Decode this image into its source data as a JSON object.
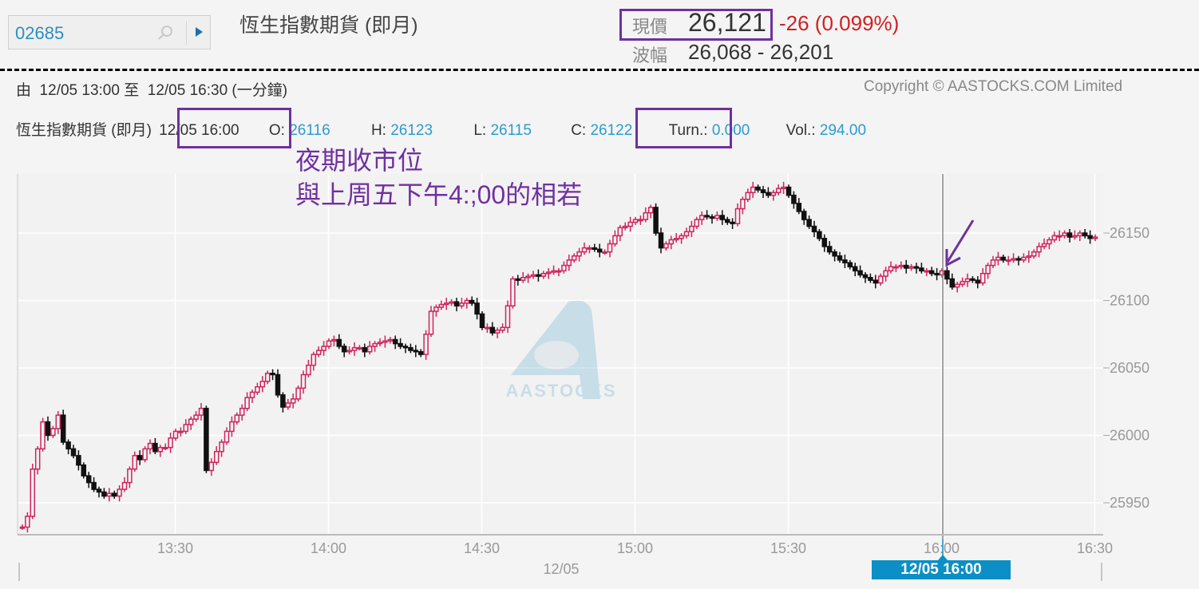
{
  "search": {
    "value": "02685",
    "icon": "search-icon",
    "go_icon": "play-icon"
  },
  "header": {
    "title": "恆生指數期貨 (即月)",
    "price_label": "現價",
    "price": "26,121",
    "change": "-26 (0.099%)",
    "range_label": "波幅",
    "range": "26,068 - 26,201"
  },
  "chart_header": {
    "period": "由  12/05 13:00 至  12/05 16:30 (一分鐘)",
    "copyright": "Copyright © AASTOCKS.COM Limited",
    "name": "恆生指數期貨 (即月)",
    "time": "12/05 16:00",
    "o_label": "O:",
    "o": "26116",
    "h_label": "H:",
    "h": "26123",
    "l_label": "L:",
    "l": "26115",
    "c_label": "C:",
    "c": "26122",
    "turn_label": "Turn.:",
    "turn": "0.000",
    "vol_label": "Vol.:",
    "vol": "294.00"
  },
  "annotation": {
    "line1": "夜期收市位",
    "line2": "與上周五下午4:;00的相若",
    "color": "#7030a0"
  },
  "watermark": "AASTOCKS",
  "colors": {
    "up": "#d0245c",
    "down": "#111111",
    "accent": "#0b8fc6",
    "change": "#d21f1f"
  },
  "chart_data": {
    "type": "candlestick",
    "interval": "1 minute",
    "start": "13:00",
    "x_ticks": [
      "13:30",
      "14:00",
      "14:30",
      "15:00",
      "15:30",
      "16:00",
      "16:30"
    ],
    "x_date": "12/05",
    "y_ticks": [
      25950,
      26000,
      26050,
      26100,
      26150
    ],
    "ylim": [
      25930,
      26195
    ],
    "cursor": "12/05 16:00",
    "grid": true,
    "close": [
      25932,
      25940,
      25975,
      25990,
      26010,
      26000,
      26005,
      26015,
      25995,
      25990,
      25985,
      25978,
      25970,
      25965,
      25960,
      25958,
      25955,
      25957,
      25955,
      25960,
      25965,
      25975,
      25985,
      25982,
      25990,
      25994,
      25988,
      25991,
      25991,
      25998,
      26003,
      26003,
      26008,
      26012,
      26015,
      26020,
      25974,
      25980,
      25988,
      25995,
      26003,
      26010,
      26015,
      26020,
      26028,
      26032,
      26036,
      26040,
      26046,
      26045,
      26030,
      26021,
      26024,
      26027,
      26035,
      26045,
      26052,
      26060,
      26063,
      26066,
      26070,
      26071,
      26066,
      26062,
      26063,
      26065,
      26065,
      26062,
      26066,
      26068,
      26069,
      26070,
      26071,
      26068,
      26066,
      26065,
      26063,
      26062,
      26060,
      26075,
      26092,
      26095,
      26097,
      26098,
      26099,
      26096,
      26098,
      26100,
      26098,
      26090,
      26080,
      26080,
      26076,
      26078,
      26080,
      26096,
      26116,
      26115,
      26117,
      26118,
      26119,
      26118,
      26120,
      26121,
      26122,
      26122,
      26126,
      26130,
      26133,
      26136,
      26139,
      26139,
      26138,
      26136,
      26136,
      26142,
      26148,
      26154,
      26155,
      26158,
      26160,
      26160,
      26165,
      26169,
      26150,
      26139,
      26142,
      26145,
      26146,
      26148,
      26151,
      26155,
      26160,
      26163,
      26162,
      26161,
      26163,
      26160,
      26158,
      26157,
      26168,
      26175,
      26180,
      26184,
      26182,
      26180,
      26178,
      26180,
      26183,
      26184,
      26178,
      26172,
      26166,
      26160,
      26155,
      26151,
      26146,
      26140,
      26136,
      26133,
      26130,
      26128,
      26125,
      26122,
      26119,
      26117,
      26115,
      26113,
      26118,
      26122,
      26125,
      26125,
      26126,
      26124,
      26125,
      26124,
      26122,
      26122,
      26120,
      26119,
      26122,
      26116,
      26110,
      26112,
      26114,
      26116,
      26115,
      26113,
      26120,
      26126,
      26130,
      26132,
      26130,
      26130,
      26131,
      26130,
      26132,
      26133,
      26136,
      26140,
      26142,
      26145,
      26148,
      26148,
      26150,
      26147,
      26148,
      26150,
      26148,
      26146,
      26147
    ]
  }
}
